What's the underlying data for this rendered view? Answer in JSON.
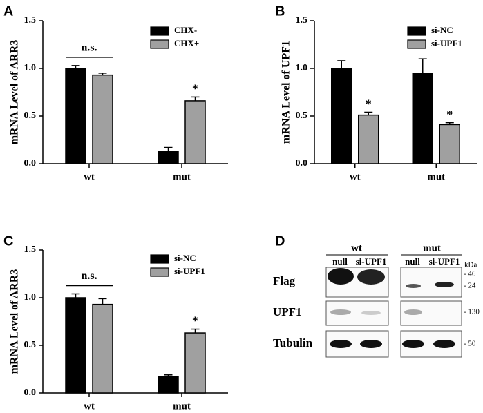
{
  "chart_data": [
    {
      "type": "bar",
      "panel_label": "A",
      "y_label": "mRNA Level of ARR3",
      "categories": [
        "wt",
        "mut"
      ],
      "series": [
        {
          "name": "CHX-",
          "color": "#000000",
          "values": [
            1.0,
            0.13
          ],
          "errors": [
            0.03,
            0.04
          ],
          "annotations": [
            null,
            null
          ]
        },
        {
          "name": "CHX+",
          "color": "#a0a0a0",
          "values": [
            0.93,
            0.66
          ],
          "errors": [
            0.02,
            0.04
          ],
          "annotations": [
            null,
            "*"
          ]
        }
      ],
      "group_annotations": [
        "n.s.",
        null
      ],
      "ylim": [
        0,
        1.5
      ],
      "yticks": [
        {
          "value": 0,
          "label": "0.0"
        },
        {
          "value": 0.5,
          "label": "0.5"
        },
        {
          "value": 1,
          "label": "1.0"
        },
        {
          "value": 1.5,
          "label": "1.5"
        }
      ]
    },
    {
      "type": "bar",
      "panel_label": "B",
      "y_label": "mRNA Level of UPF1",
      "categories": [
        "wt",
        "mut"
      ],
      "series": [
        {
          "name": "si-NC",
          "color": "#000000",
          "values": [
            1.0,
            0.95
          ],
          "errors": [
            0.08,
            0.15
          ],
          "annotations": [
            null,
            null
          ]
        },
        {
          "name": "si-UPF1",
          "color": "#a0a0a0",
          "values": [
            0.51,
            0.41
          ],
          "errors": [
            0.03,
            0.02
          ],
          "annotations": [
            "*",
            "*"
          ]
        }
      ],
      "group_annotations": [
        null,
        null
      ],
      "ylim": [
        0,
        1.5
      ],
      "yticks": [
        {
          "value": 0,
          "label": "0.0"
        },
        {
          "value": 0.5,
          "label": "0.5"
        },
        {
          "value": 1,
          "label": "1.0"
        },
        {
          "value": 1.5,
          "label": "1.5"
        }
      ]
    },
    {
      "type": "bar",
      "panel_label": "C",
      "y_label": "mRNA Level of ARR3",
      "categories": [
        "wt",
        "mut"
      ],
      "series": [
        {
          "name": "si-NC",
          "color": "#000000",
          "values": [
            1.0,
            0.17
          ],
          "errors": [
            0.04,
            0.02
          ],
          "annotations": [
            null,
            null
          ]
        },
        {
          "name": "si-UPF1",
          "color": "#a0a0a0",
          "values": [
            0.93,
            0.63
          ],
          "errors": [
            0.06,
            0.04
          ],
          "annotations": [
            null,
            "*"
          ]
        }
      ],
      "group_annotations": [
        "n.s.",
        null
      ],
      "ylim": [
        0,
        1.5
      ],
      "yticks": [
        {
          "value": 0,
          "label": "0.0"
        },
        {
          "value": 0.5,
          "label": "0.5"
        },
        {
          "value": 1,
          "label": "1.0"
        },
        {
          "value": 1.5,
          "label": "1.5"
        }
      ]
    }
  ],
  "blot": {
    "panel_label": "D",
    "groups": [
      {
        "name": "wt",
        "lanes": [
          "null",
          "si-UPF1"
        ]
      },
      {
        "name": "mut",
        "lanes": [
          "null",
          "si-UPF1"
        ]
      }
    ],
    "unit": "kDa",
    "rows": [
      "Flag",
      "UPF1",
      "Tubulin"
    ],
    "markers": [
      "- 46",
      "- 24",
      "- 130",
      "- 50"
    ]
  }
}
